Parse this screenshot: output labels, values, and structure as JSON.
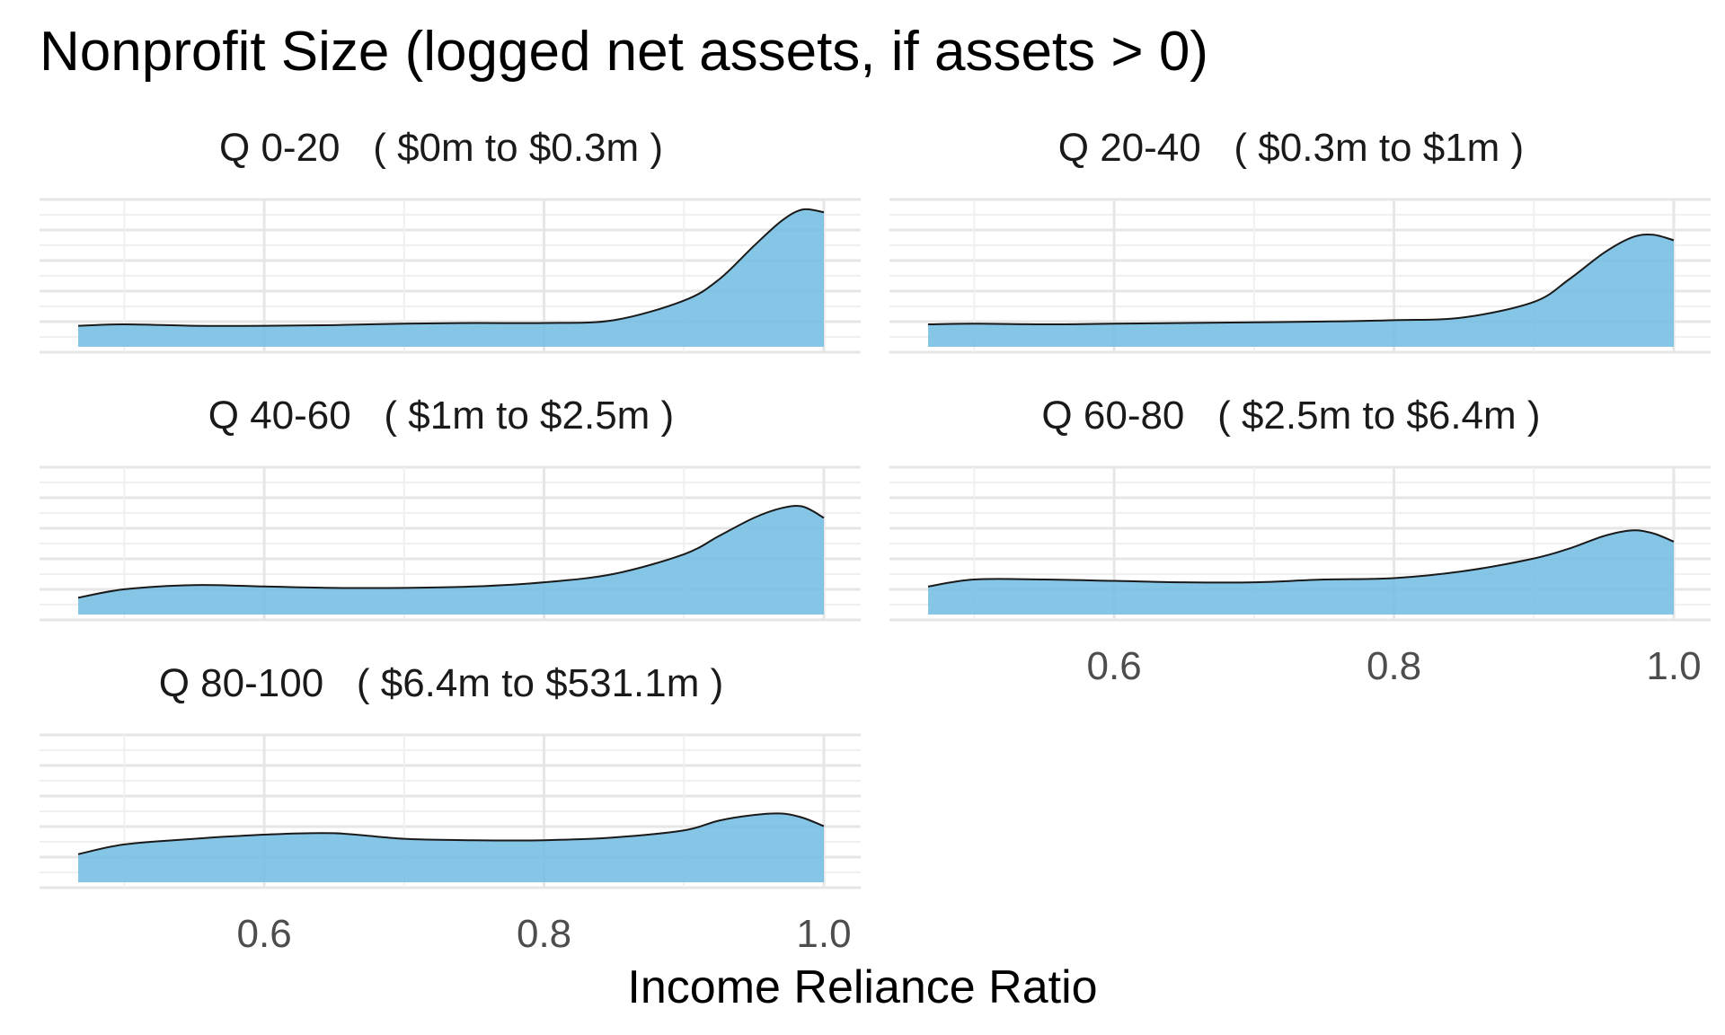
{
  "chart_data": {
    "type": "area",
    "title": "Nonprofit Size (logged net assets, if assets > 0)",
    "xlabel": "Income Reliance Ratio",
    "ylabel": "",
    "xlim": [
      0.467,
      1.0
    ],
    "x_ticks": [
      0.6,
      0.8,
      1.0
    ],
    "x_tick_labels": [
      "0.6",
      "0.8",
      "1.0"
    ],
    "grid": true,
    "fill_color": "#74BDE3",
    "line_color": "#1a1a1a",
    "facets": [
      {
        "label": "Q 0-20   ( $0m to $0.3m )",
        "x": [
          0.467,
          0.5,
          0.55,
          0.6,
          0.65,
          0.7,
          0.75,
          0.8,
          0.85,
          0.9,
          0.925,
          0.95,
          0.97,
          0.985,
          1.0
        ],
        "density": [
          0.15,
          0.16,
          0.15,
          0.15,
          0.155,
          0.165,
          0.17,
          0.17,
          0.19,
          0.33,
          0.48,
          0.72,
          0.9,
          0.98,
          0.96
        ]
      },
      {
        "label": "Q 20-40   ( $0.3m to $1m )",
        "x": [
          0.467,
          0.5,
          0.55,
          0.6,
          0.65,
          0.7,
          0.75,
          0.8,
          0.85,
          0.9,
          0.925,
          0.95,
          0.97,
          0.985,
          1.0
        ],
        "density": [
          0.16,
          0.165,
          0.16,
          0.165,
          0.17,
          0.175,
          0.18,
          0.19,
          0.21,
          0.32,
          0.48,
          0.67,
          0.78,
          0.8,
          0.76
        ]
      },
      {
        "label": "Q 40-60   ( $1m to $2.5m )",
        "x": [
          0.467,
          0.5,
          0.55,
          0.6,
          0.65,
          0.7,
          0.75,
          0.8,
          0.85,
          0.9,
          0.925,
          0.95,
          0.97,
          0.985,
          1.0
        ],
        "density": [
          0.12,
          0.18,
          0.21,
          0.2,
          0.19,
          0.19,
          0.2,
          0.23,
          0.29,
          0.43,
          0.56,
          0.69,
          0.76,
          0.77,
          0.69
        ]
      },
      {
        "label": "Q 60-80   ( $2.5m to $6.4m )",
        "x": [
          0.467,
          0.5,
          0.55,
          0.6,
          0.65,
          0.7,
          0.75,
          0.8,
          0.85,
          0.9,
          0.925,
          0.95,
          0.97,
          0.985,
          1.0
        ],
        "density": [
          0.2,
          0.25,
          0.25,
          0.24,
          0.23,
          0.23,
          0.25,
          0.26,
          0.31,
          0.4,
          0.47,
          0.56,
          0.6,
          0.58,
          0.52
        ]
      },
      {
        "label": "Q 80-100   ( $6.4m to $531.1m )",
        "x": [
          0.467,
          0.5,
          0.55,
          0.6,
          0.65,
          0.7,
          0.75,
          0.8,
          0.85,
          0.9,
          0.925,
          0.95,
          0.97,
          0.985,
          1.0
        ],
        "density": [
          0.2,
          0.27,
          0.31,
          0.34,
          0.35,
          0.31,
          0.3,
          0.3,
          0.32,
          0.37,
          0.44,
          0.48,
          0.49,
          0.46,
          0.4
        ]
      }
    ]
  }
}
